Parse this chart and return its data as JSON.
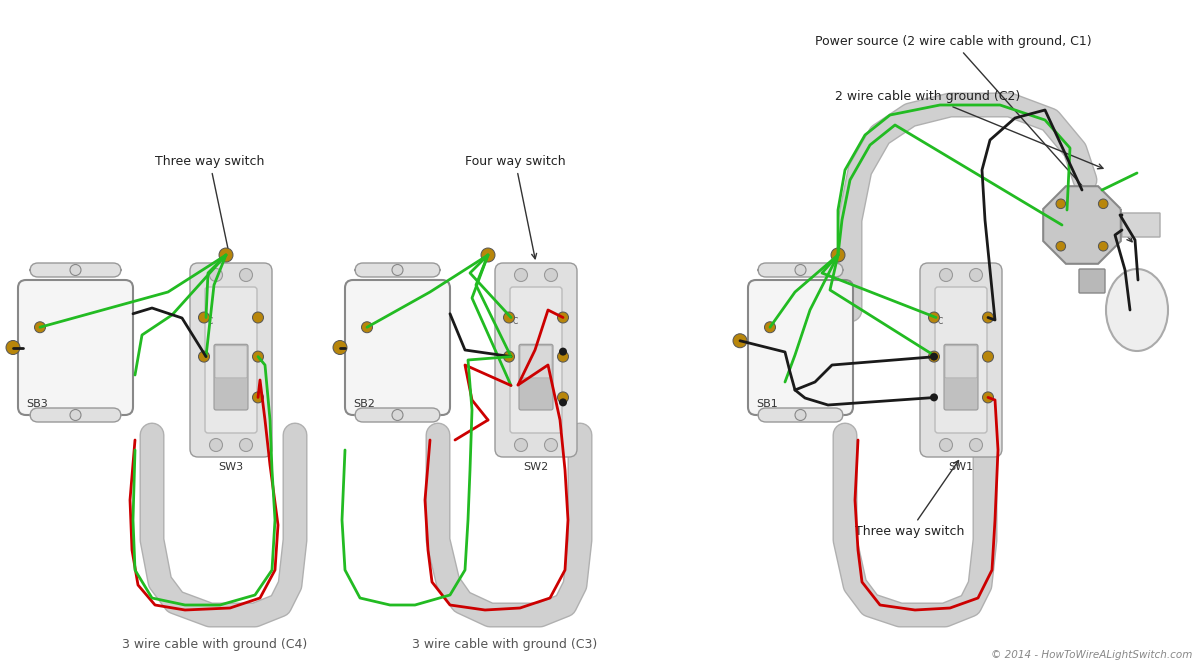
{
  "bg_color": "#ffffff",
  "copyright": "© 2014 - HowToWireALightSwitch.com",
  "wire_colors": {
    "black": "#1a1a1a",
    "red": "#cc0000",
    "green": "#22bb22",
    "ground": "#b8860b"
  },
  "labels": {
    "sw1": "SW1",
    "sw2": "SW2",
    "sw3": "SW3",
    "sb1": "SB1",
    "sb2": "SB2",
    "sb3": "SB3",
    "three_way_switch_top": "Three way switch",
    "four_way_switch": "Four way switch",
    "three_way_switch_bottom": "Three way switch",
    "cable_c3": "3 wire cable with ground (C3)",
    "cable_c4": "3 wire cable with ground (C4)",
    "cable_c1": "Power source (2 wire cable with ground, C1)",
    "cable_c2": "2 wire cable with ground (C2)"
  },
  "box_color": "#f8f8f8",
  "box_edge": "#aaaaaa",
  "switch_plate_color": "#e0e0e0",
  "conduit_color": "#d0d0d0",
  "conduit_edge": "#b0b0b0"
}
